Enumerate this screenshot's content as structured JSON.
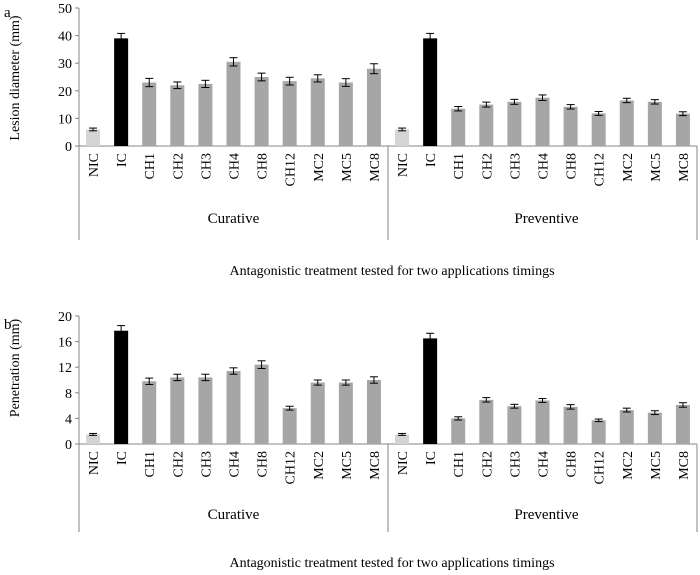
{
  "panels": [
    {
      "panel_label": "a",
      "ylabel": "Lesion diameter (mm)",
      "xlabel": "Antagonistic treatment tested for two applications timings"
    },
    {
      "panel_label": "b",
      "ylabel": "Penetration (mm)",
      "xlabel": "Antagonistic treatment tested for two applications timings"
    }
  ],
  "colors": {
    "NIC": "#d4d4d4",
    "IC": "#000000",
    "treatment": "#a6a6a6",
    "axis": "#868686"
  },
  "chart_data": [
    {
      "type": "bar",
      "title": "",
      "ylabel": "Lesion diameter (mm)",
      "xlabel": "Antagonistic treatment tested for two applications timings",
      "ylim": [
        0,
        50
      ],
      "yticks": [
        0,
        10,
        20,
        30,
        40,
        50
      ],
      "group_labels": [
        "Curative",
        "Preventive"
      ],
      "categories": [
        "NIC",
        "IC",
        "CH1",
        "CH2",
        "CH3",
        "CH4",
        "CH8",
        "CH12",
        "MC2",
        "MC5",
        "MC8"
      ],
      "groups": [
        {
          "name": "Curative",
          "values": [
            6,
            39,
            23,
            22,
            22.5,
            30.5,
            25,
            23.5,
            24.5,
            23,
            28
          ],
          "errors": [
            0.5,
            1.8,
            1.5,
            1.2,
            1.3,
            1.5,
            1.4,
            1.4,
            1.3,
            1.4,
            1.8
          ]
        },
        {
          "name": "Preventive",
          "values": [
            6,
            39,
            13.5,
            15,
            16,
            17.5,
            14.2,
            11.8,
            16.5,
            16,
            11.7
          ],
          "errors": [
            0.5,
            1.8,
            0.8,
            0.9,
            0.9,
            1.0,
            0.8,
            0.7,
            0.8,
            0.8,
            0.7
          ]
        }
      ]
    },
    {
      "type": "bar",
      "title": "",
      "ylabel": "Penetration (mm)",
      "xlabel": "Antagonistic treatment tested for two applications timings",
      "ylim": [
        0,
        20
      ],
      "yticks": [
        0,
        4,
        8,
        12,
        16,
        20
      ],
      "group_labels": [
        "Curative",
        "Preventive"
      ],
      "categories": [
        "NIC",
        "IC",
        "CH1",
        "CH2",
        "CH3",
        "CH4",
        "CH8",
        "CH12",
        "MC2",
        "MC5",
        "MC8"
      ],
      "groups": [
        {
          "name": "Curative",
          "values": [
            1.5,
            17.7,
            9.8,
            10.4,
            10.4,
            11.4,
            12.4,
            5.6,
            9.6,
            9.6,
            10
          ],
          "errors": [
            0.15,
            0.8,
            0.5,
            0.5,
            0.5,
            0.5,
            0.6,
            0.3,
            0.4,
            0.4,
            0.5
          ]
        },
        {
          "name": "Preventive",
          "values": [
            1.5,
            16.5,
            4,
            6.9,
            5.9,
            6.8,
            5.8,
            3.7,
            5.3,
            4.9,
            6.1
          ],
          "errors": [
            0.15,
            0.8,
            0.25,
            0.35,
            0.3,
            0.3,
            0.35,
            0.2,
            0.3,
            0.3,
            0.35
          ]
        }
      ]
    }
  ]
}
